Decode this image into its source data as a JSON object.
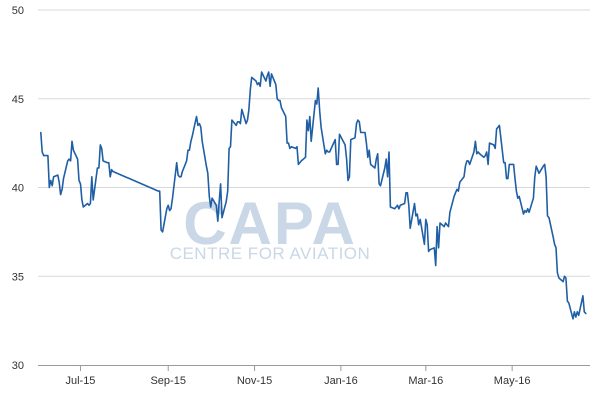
{
  "watermark": {
    "main": "CAPA",
    "sub": "CENTRE FOR AVIATION",
    "color": "#c9d7e6"
  },
  "chart_data": {
    "type": "line",
    "title": "",
    "xlabel": "",
    "ylabel": "",
    "ylim": [
      30,
      50
    ],
    "yticks": [
      30,
      35,
      40,
      45,
      50
    ],
    "xlim": [
      "2015-06-01",
      "2016-06-25"
    ],
    "xticks": [
      {
        "date": "2015-07-01",
        "label": "Jul-15"
      },
      {
        "date": "2015-09-01",
        "label": "Sep-15"
      },
      {
        "date": "2015-11-01",
        "label": "Nov-15"
      },
      {
        "date": "2016-01-01",
        "label": "Jan-16"
      },
      {
        "date": "2016-03-01",
        "label": "Mar-16"
      },
      {
        "date": "2016-05-01",
        "label": "May-16"
      }
    ],
    "grid": {
      "horizontal": true,
      "vertical": false
    },
    "line_color": "#1f5fa5",
    "series": [
      {
        "x": [
          "2015-06-03",
          "2015-06-04",
          "2015-06-05",
          "2015-06-08",
          "2015-06-09",
          "2015-06-10",
          "2015-06-11",
          "2015-06-12",
          "2015-06-15",
          "2015-06-16",
          "2015-06-17",
          "2015-06-18",
          "2015-06-19",
          "2015-06-22",
          "2015-06-23",
          "2015-06-24",
          "2015-06-25",
          "2015-06-26",
          "2015-06-29",
          "2015-06-30",
          "2015-07-01",
          "2015-07-02",
          "2015-07-03",
          "2015-07-06",
          "2015-07-07",
          "2015-07-08",
          "2015-07-09",
          "2015-07-10",
          "2015-07-13",
          "2015-07-14",
          "2015-07-15",
          "2015-07-16",
          "2015-07-17",
          "2015-07-20",
          "2015-07-21",
          "2015-07-22",
          "2015-07-23",
          "2015-07-24",
          "2015-08-25",
          "2015-08-26",
          "2015-08-27",
          "2015-08-28",
          "2015-08-31",
          "2015-09-01",
          "2015-09-02",
          "2015-09-03",
          "2015-09-04",
          "2015-09-07",
          "2015-09-08",
          "2015-09-09",
          "2015-09-10",
          "2015-09-11",
          "2015-09-14",
          "2015-09-15",
          "2015-09-16",
          "2015-09-17",
          "2015-09-18",
          "2015-09-21",
          "2015-09-22",
          "2015-09-23",
          "2015-09-24",
          "2015-09-25",
          "2015-09-28",
          "2015-09-29",
          "2015-09-30",
          "2015-10-01",
          "2015-10-02",
          "2015-10-05",
          "2015-10-06",
          "2015-10-07",
          "2015-10-08",
          "2015-10-09",
          "2015-10-12",
          "2015-10-13",
          "2015-10-14",
          "2015-10-15",
          "2015-10-16",
          "2015-10-19",
          "2015-10-20",
          "2015-10-21",
          "2015-10-22",
          "2015-10-23",
          "2015-10-26",
          "2015-10-27",
          "2015-10-28",
          "2015-10-29",
          "2015-10-30",
          "2015-11-02",
          "2015-11-03",
          "2015-11-04",
          "2015-11-05",
          "2015-11-06",
          "2015-11-09",
          "2015-11-10",
          "2015-11-11",
          "2015-11-12",
          "2015-11-13",
          "2015-11-16",
          "2015-11-17",
          "2015-11-18",
          "2015-11-19",
          "2015-11-20",
          "2015-11-23",
          "2015-11-24",
          "2015-11-25",
          "2015-11-26",
          "2015-11-27",
          "2015-11-30",
          "2015-12-01",
          "2015-12-02",
          "2015-12-03",
          "2015-12-04",
          "2015-12-07",
          "2015-12-08",
          "2015-12-09",
          "2015-12-10",
          "2015-12-11",
          "2015-12-14",
          "2015-12-15",
          "2015-12-16",
          "2015-12-17",
          "2015-12-18",
          "2015-12-21",
          "2015-12-22",
          "2015-12-23",
          "2015-12-24",
          "2015-12-28",
          "2015-12-29",
          "2015-12-30",
          "2015-12-31",
          "2016-01-04",
          "2016-01-05",
          "2016-01-06",
          "2016-01-07",
          "2016-01-08",
          "2016-01-11",
          "2016-01-12",
          "2016-01-13",
          "2016-01-14",
          "2016-01-15",
          "2016-01-18",
          "2016-01-19",
          "2016-01-20",
          "2016-01-21",
          "2016-01-22",
          "2016-01-25",
          "2016-01-26",
          "2016-01-27",
          "2016-01-28",
          "2016-01-29",
          "2016-02-01",
          "2016-02-02",
          "2016-02-03",
          "2016-02-04",
          "2016-02-05",
          "2016-02-08",
          "2016-02-09",
          "2016-02-10",
          "2016-02-11",
          "2016-02-12",
          "2016-02-15",
          "2016-02-16",
          "2016-02-17",
          "2016-02-18",
          "2016-02-19",
          "2016-02-22",
          "2016-02-23",
          "2016-02-24",
          "2016-02-25",
          "2016-02-26",
          "2016-02-29",
          "2016-03-01",
          "2016-03-02",
          "2016-03-03",
          "2016-03-04",
          "2016-03-07",
          "2016-03-08",
          "2016-03-09",
          "2016-03-10",
          "2016-03-11",
          "2016-03-14",
          "2016-03-15",
          "2016-03-16",
          "2016-03-17",
          "2016-03-18",
          "2016-03-21",
          "2016-03-22",
          "2016-03-23",
          "2016-03-24",
          "2016-03-25",
          "2016-03-28",
          "2016-03-29",
          "2016-03-30",
          "2016-03-31",
          "2016-04-01",
          "2016-04-04",
          "2016-04-05",
          "2016-04-06",
          "2016-04-07",
          "2016-04-08",
          "2016-04-11",
          "2016-04-12",
          "2016-04-13",
          "2016-04-14",
          "2016-04-15",
          "2016-04-18",
          "2016-04-19",
          "2016-04-20",
          "2016-04-21",
          "2016-04-22",
          "2016-04-25",
          "2016-04-26",
          "2016-04-27",
          "2016-04-28",
          "2016-04-29",
          "2016-05-02",
          "2016-05-03",
          "2016-05-04",
          "2016-05-05",
          "2016-05-06",
          "2016-05-09",
          "2016-05-10",
          "2016-05-11",
          "2016-05-12",
          "2016-05-13",
          "2016-05-16",
          "2016-05-17",
          "2016-05-18",
          "2016-05-19",
          "2016-05-20",
          "2016-05-23",
          "2016-05-24",
          "2016-05-25",
          "2016-05-26",
          "2016-05-27",
          "2016-05-30",
          "2016-05-31",
          "2016-06-01",
          "2016-06-02",
          "2016-06-03",
          "2016-06-06",
          "2016-06-07",
          "2016-06-08",
          "2016-06-09",
          "2016-06-10",
          "2016-06-13",
          "2016-06-14",
          "2016-06-15",
          "2016-06-16",
          "2016-06-17",
          "2016-06-20",
          "2016-06-21",
          "2016-06-22"
        ],
        "y": [
          43.1,
          42.0,
          41.8,
          41.8,
          40.0,
          40.4,
          40.1,
          40.6,
          40.7,
          40.3,
          39.6,
          39.9,
          40.5,
          41.5,
          41.6,
          41.5,
          42.6,
          42.1,
          41.6,
          40.4,
          40.2,
          39.3,
          38.9,
          39.1,
          39.0,
          39.1,
          40.6,
          39.3,
          41.1,
          41.1,
          42.4,
          42.2,
          41.5,
          41.4,
          41.4,
          40.6,
          41.0,
          40.9,
          39.8,
          39.8,
          37.6,
          37.5,
          38.8,
          39.0,
          38.7,
          38.8,
          39.4,
          41.4,
          40.7,
          40.6,
          40.6,
          40.9,
          41.5,
          42.1,
          42.1,
          42.6,
          42.9,
          44.0,
          43.5,
          43.6,
          43.4,
          42.6,
          41.2,
          40.8,
          39.5,
          38.9,
          39.4,
          39.0,
          38.1,
          39.2,
          40.2,
          38.3,
          39.2,
          39.8,
          42.2,
          42.3,
          43.8,
          43.5,
          43.7,
          43.7,
          43.6,
          44.4,
          43.6,
          43.8,
          44.4,
          45.5,
          46.2,
          46.0,
          45.8,
          45.9,
          45.7,
          46.5,
          46.0,
          46.3,
          46.5,
          45.7,
          46.4,
          45.8,
          45.0,
          44.9,
          44.9,
          44.5,
          44.0,
          42.5,
          42.5,
          42.2,
          42.3,
          42.2,
          42.3,
          41.3,
          41.4,
          41.5,
          41.7,
          43.8,
          43.2,
          44.0,
          42.6,
          44.9,
          44.7,
          45.6,
          44.3,
          43.4,
          41.9,
          42.1,
          42.0,
          42.0,
          42.7,
          41.3,
          41.3,
          43.0,
          42.4,
          41.6,
          40.4,
          40.6,
          42.7,
          42.8,
          43.6,
          43.8,
          43.7,
          43.1,
          43.1,
          42.5,
          41.7,
          42.1,
          41.3,
          41.1,
          41.6,
          41.9,
          40.2,
          40.1,
          41.1,
          41.6,
          40.6,
          42.0,
          38.9,
          38.8,
          38.9,
          39.0,
          38.8,
          39.0,
          39.1,
          39.7,
          39.7,
          39.0,
          37.7,
          39.1,
          38.4,
          38.5,
          37.9,
          38.2,
          36.8,
          38.2,
          37.9,
          36.4,
          36.5,
          36.6,
          35.6,
          37.8,
          36.6,
          38.0,
          37.8,
          38.0,
          37.9,
          37.8,
          38.6,
          39.5,
          39.7,
          39.9,
          39.8,
          40.3,
          40.6,
          41.2,
          41.5,
          41.5,
          41.3,
          42.0,
          42.6,
          41.9,
          42.0,
          41.9,
          41.7,
          41.8,
          42.0,
          41.3,
          42.5,
          42.4,
          42.2,
          43.3,
          43.4,
          43.5,
          41.4,
          41.4,
          40.5,
          40.5,
          41.3,
          41.3,
          40.5,
          39.8,
          39.4,
          39.5,
          38.5,
          38.7,
          38.6,
          38.8,
          38.6,
          39.4,
          40.6,
          41.2,
          41.0,
          40.8,
          41.2,
          41.3,
          40.6,
          38.4,
          38.3,
          37.2,
          36.8,
          36.6,
          35.2,
          34.9,
          34.7,
          35.0,
          34.9,
          33.6,
          33.5,
          32.6,
          33.0,
          32.7,
          33.0,
          32.8,
          33.9,
          33.0,
          32.9
        ]
      }
    ]
  }
}
